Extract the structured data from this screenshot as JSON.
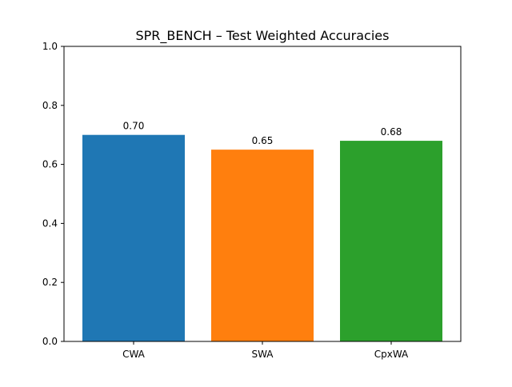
{
  "chart_data": {
    "type": "bar",
    "title": "SPR_BENCH – Test Weighted Accuracies",
    "categories": [
      "CWA",
      "SWA",
      "CpxWA"
    ],
    "values": [
      0.7,
      0.65,
      0.68
    ],
    "value_labels": [
      "0.70",
      "0.65",
      "0.68"
    ],
    "colors": [
      "#1f77b4",
      "#ff7f0e",
      "#2ca02c"
    ],
    "xlabel": "",
    "ylabel": "",
    "ylim": [
      0,
      1
    ],
    "yticks": [
      0.0,
      0.2,
      0.4,
      0.6,
      0.8,
      1.0
    ],
    "ytick_labels": [
      "0.0",
      "0.2",
      "0.4",
      "0.6",
      "0.8",
      "1.0"
    ],
    "grid": false,
    "legend": "none"
  }
}
